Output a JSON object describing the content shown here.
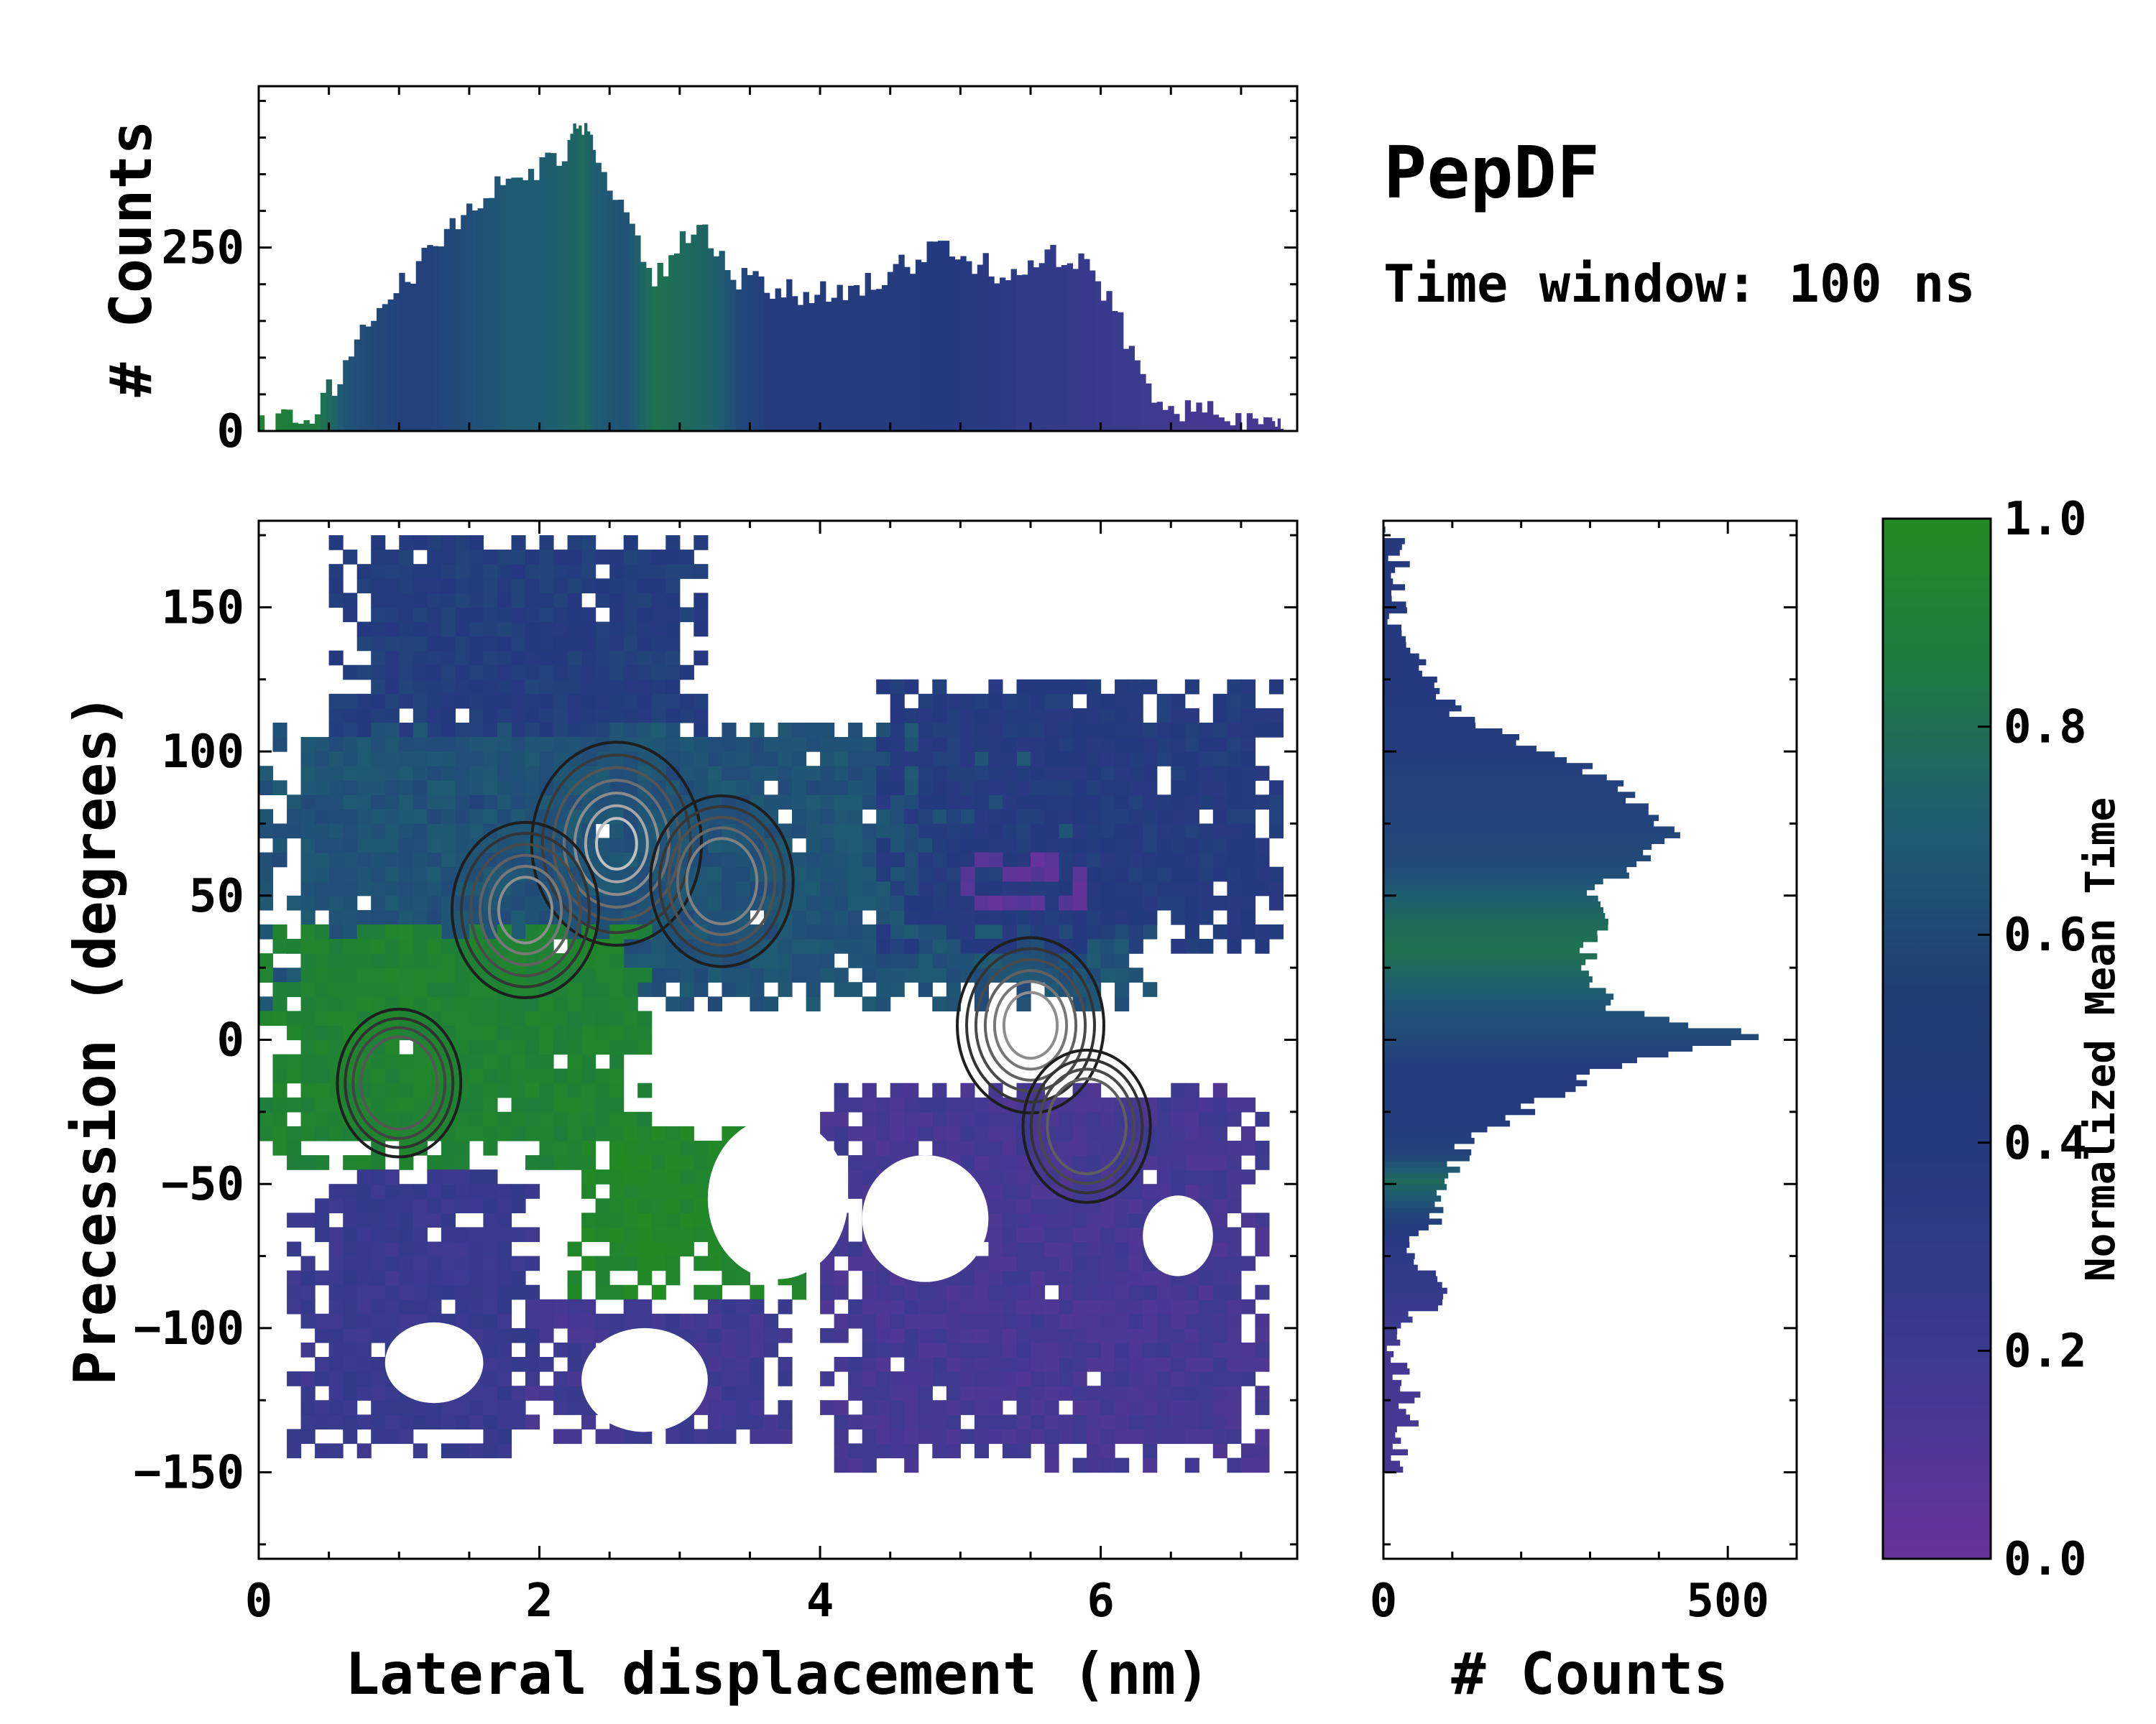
{
  "figure": {
    "title": "PepDF",
    "subtitle": "Time window: 100 ns"
  },
  "colormap": {
    "stops": [
      "#673399",
      "#3b3a8f",
      "#24397f",
      "#1f5b73",
      "#1d7a43",
      "#228b22"
    ],
    "label": "Normalized Mean Time",
    "ticks": [
      0.0,
      0.2,
      0.4,
      0.6,
      0.8,
      1.0
    ],
    "tick_labels": [
      "0.0",
      "0.2",
      "0.4",
      "0.6",
      "0.8",
      "1.0"
    ]
  },
  "chart_data": [
    {
      "id": "main",
      "type": "heatmap",
      "xlabel": "Lateral displacement (nm)",
      "ylabel": "Precession (degrees)",
      "xlim": [
        0,
        7.4
      ],
      "ylim": [
        -180,
        180
      ],
      "xticks": [
        0,
        2,
        4,
        6
      ],
      "xtick_labels": [
        "0",
        "2",
        "4",
        "6"
      ],
      "yticks": [
        -150,
        -100,
        -50,
        0,
        50,
        100,
        150
      ],
      "ytick_labels": [
        "−150",
        "−100",
        "−50",
        "0",
        "50",
        "100",
        "150"
      ],
      "regions": [
        {
          "name": "upper-left lobe",
          "x": [
            0.5,
            3.2
          ],
          "y": [
            60,
            175
          ],
          "value": 0.42
        },
        {
          "name": "central band",
          "x": [
            0.0,
            6.4
          ],
          "y": [
            10,
            110
          ],
          "value": 0.55
        },
        {
          "name": "upper-right lobe",
          "x": [
            4.4,
            7.3
          ],
          "y": [
            30,
            125
          ],
          "value": 0.4
        },
        {
          "name": "green left band",
          "x": [
            0.0,
            2.8
          ],
          "y": [
            -45,
            40
          ],
          "value": 0.9
        },
        {
          "name": "green lower patch",
          "x": [
            2.2,
            3.9
          ],
          "y": [
            -90,
            -30
          ],
          "value": 0.95
        },
        {
          "name": "lower left lobe",
          "x": [
            0.2,
            2.0
          ],
          "y": [
            -145,
            -45
          ],
          "value": 0.22
        },
        {
          "name": "lower middle lobe",
          "x": [
            1.9,
            3.8
          ],
          "y": [
            -140,
            -90
          ],
          "value": 0.18
        },
        {
          "name": "lower right lobe",
          "x": [
            4.0,
            7.2
          ],
          "y": [
            -150,
            -15
          ],
          "value": 0.15
        },
        {
          "name": "purple patch right",
          "x": [
            5.0,
            5.9
          ],
          "y": [
            45,
            65
          ],
          "value": 0.05
        }
      ],
      "density_peaks": [
        {
          "x": 2.55,
          "y": 68,
          "level": 1.0
        },
        {
          "x": 1.9,
          "y": 45,
          "level": 0.7
        },
        {
          "x": 3.3,
          "y": 55,
          "level": 0.65
        },
        {
          "x": 5.5,
          "y": 5,
          "level": 0.7
        },
        {
          "x": 5.9,
          "y": -30,
          "level": 0.45
        },
        {
          "x": 1.0,
          "y": -15,
          "level": 0.4
        }
      ]
    },
    {
      "id": "top",
      "type": "bar",
      "orientation": "vertical",
      "ylabel": "# Counts",
      "xlim": [
        0,
        7.4
      ],
      "ylim": [
        0,
        470
      ],
      "yticks": [
        0,
        250
      ],
      "ytick_labels": [
        "0",
        "250"
      ],
      "x": [
        0.0,
        0.2,
        0.4,
        0.6,
        0.8,
        1.0,
        1.2,
        1.4,
        1.6,
        1.8,
        2.0,
        2.2,
        2.3,
        2.4,
        2.6,
        2.8,
        3.0,
        3.2,
        3.4,
        3.6,
        3.8,
        4.0,
        4.2,
        4.4,
        4.6,
        4.8,
        5.0,
        5.2,
        5.4,
        5.6,
        5.8,
        6.0,
        6.2,
        6.4,
        6.6,
        6.8,
        7.0,
        7.2,
        7.3
      ],
      "values": [
        2,
        12,
        28,
        90,
        160,
        205,
        240,
        290,
        325,
        345,
        355,
        395,
        410,
        380,
        290,
        195,
        270,
        260,
        205,
        195,
        185,
        190,
        200,
        205,
        225,
        250,
        235,
        220,
        225,
        235,
        230,
        195,
        110,
        45,
        30,
        20,
        12,
        6,
        2
      ],
      "value_colors": [
        0.9,
        0.85,
        0.8,
        0.55,
        0.5,
        0.45,
        0.45,
        0.5,
        0.55,
        0.6,
        0.6,
        0.65,
        0.7,
        0.6,
        0.55,
        0.75,
        0.7,
        0.65,
        0.5,
        0.42,
        0.42,
        0.42,
        0.42,
        0.42,
        0.42,
        0.4,
        0.38,
        0.35,
        0.3,
        0.28,
        0.25,
        0.22,
        0.2,
        0.18,
        0.16,
        0.15,
        0.15,
        0.15,
        0.15
      ]
    },
    {
      "id": "right",
      "type": "bar",
      "orientation": "horizontal",
      "xlabel": "# Counts",
      "xlim": [
        0,
        600
      ],
      "xticks": [
        0,
        500
      ],
      "xtick_labels": [
        "0",
        "500"
      ],
      "y": [
        -150,
        -140,
        -130,
        -120,
        -110,
        -100,
        -90,
        -80,
        -70,
        -60,
        -50,
        -40,
        -30,
        -20,
        -10,
        0,
        10,
        20,
        30,
        40,
        50,
        60,
        70,
        80,
        90,
        100,
        110,
        120,
        130,
        140,
        150,
        160,
        170,
        180
      ],
      "values": [
        10,
        25,
        40,
        30,
        20,
        30,
        85,
        60,
        45,
        90,
        100,
        110,
        170,
        250,
        330,
        540,
        340,
        290,
        300,
        310,
        310,
        360,
        430,
        380,
        320,
        230,
        120,
        90,
        50,
        20,
        15,
        25,
        20,
        5
      ],
      "value_colors": [
        0.15,
        0.15,
        0.15,
        0.15,
        0.15,
        0.2,
        0.25,
        0.3,
        0.35,
        0.5,
        0.7,
        0.45,
        0.42,
        0.42,
        0.42,
        0.5,
        0.55,
        0.65,
        0.75,
        0.7,
        0.6,
        0.5,
        0.48,
        0.45,
        0.45,
        0.42,
        0.42,
        0.4,
        0.4,
        0.4,
        0.4,
        0.4,
        0.4,
        0.4
      ]
    }
  ]
}
